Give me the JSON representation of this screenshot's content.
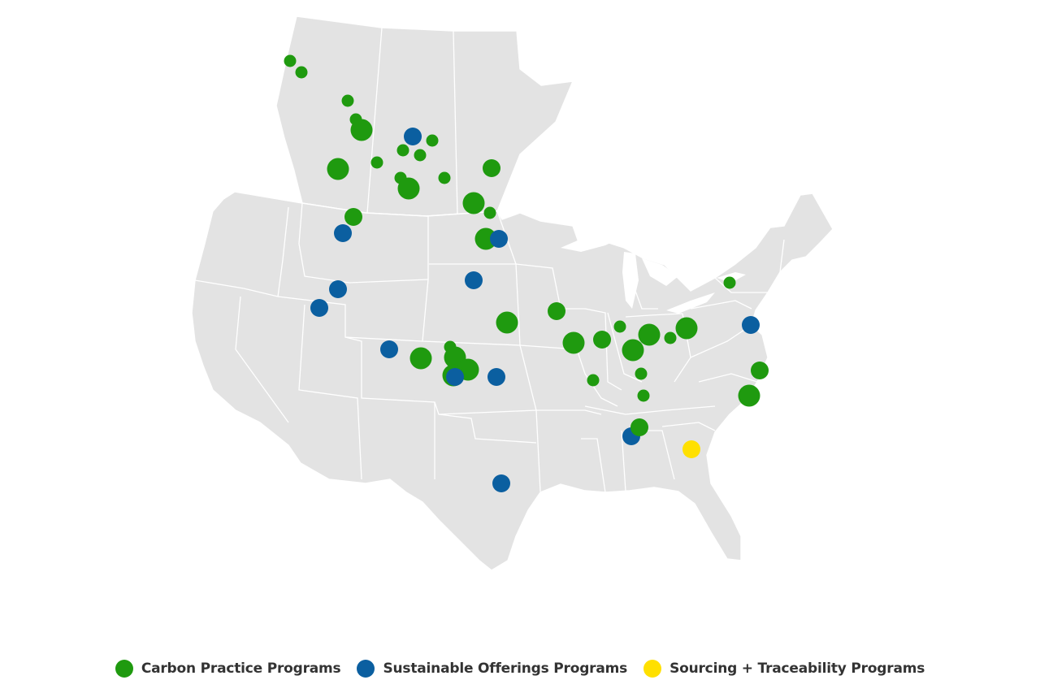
{
  "colors": {
    "land": "#e3e3e3",
    "border": "#ffffff",
    "text": "#333333"
  },
  "legend": [
    {
      "key": "carbon",
      "label": "Carbon Practice Programs",
      "color": "#1f9a0f",
      "icon": "green-circle-icon"
    },
    {
      "key": "sustainable",
      "label": "Sustainable Offerings Programs",
      "color": "#0b5fa0",
      "icon": "blue-circle-icon"
    },
    {
      "key": "sourcing",
      "label": "Sourcing + Traceability Programs",
      "color": "#ffe000",
      "icon": "yellow-circle-icon"
    }
  ],
  "program_markers": [
    {
      "program": "carbon",
      "size": "small"
    },
    {
      "program": "carbon",
      "size": "small"
    },
    {
      "program": "carbon",
      "size": "small"
    },
    {
      "program": "carbon",
      "size": "small"
    },
    {
      "program": "carbon",
      "size": "large"
    },
    {
      "program": "sustainable",
      "size": "medium"
    },
    {
      "program": "carbon",
      "size": "small"
    },
    {
      "program": "carbon",
      "size": "small"
    },
    {
      "program": "carbon",
      "size": "small"
    },
    {
      "program": "carbon",
      "size": "large"
    },
    {
      "program": "carbon",
      "size": "small"
    },
    {
      "program": "carbon",
      "size": "small"
    },
    {
      "program": "carbon",
      "size": "small"
    },
    {
      "program": "carbon",
      "size": "large"
    },
    {
      "program": "carbon",
      "size": "medium"
    },
    {
      "program": "carbon",
      "size": "large"
    },
    {
      "program": "carbon",
      "size": "small"
    },
    {
      "program": "carbon",
      "size": "medium"
    },
    {
      "program": "sustainable",
      "size": "medium"
    },
    {
      "program": "carbon",
      "size": "large"
    },
    {
      "program": "sustainable",
      "size": "medium"
    },
    {
      "program": "sustainable",
      "size": "medium"
    },
    {
      "program": "sustainable",
      "size": "medium"
    },
    {
      "program": "sustainable",
      "size": "medium"
    },
    {
      "program": "carbon",
      "size": "medium"
    },
    {
      "program": "carbon",
      "size": "large"
    },
    {
      "program": "sustainable",
      "size": "medium"
    },
    {
      "program": "carbon",
      "size": "large"
    },
    {
      "program": "carbon",
      "size": "small"
    },
    {
      "program": "carbon",
      "size": "large"
    },
    {
      "program": "carbon",
      "size": "large"
    },
    {
      "program": "carbon",
      "size": "large"
    },
    {
      "program": "sustainable",
      "size": "medium"
    },
    {
      "program": "sustainable",
      "size": "medium"
    },
    {
      "program": "carbon",
      "size": "large"
    },
    {
      "program": "carbon",
      "size": "medium"
    },
    {
      "program": "carbon",
      "size": "small"
    },
    {
      "program": "carbon",
      "size": "large"
    },
    {
      "program": "carbon",
      "size": "large"
    },
    {
      "program": "carbon",
      "size": "small"
    },
    {
      "program": "carbon",
      "size": "large"
    },
    {
      "program": "carbon",
      "size": "small"
    },
    {
      "program": "carbon",
      "size": "small"
    },
    {
      "program": "carbon",
      "size": "small"
    },
    {
      "program": "carbon",
      "size": "medium"
    },
    {
      "program": "carbon",
      "size": "small"
    },
    {
      "program": "sustainable",
      "size": "medium"
    },
    {
      "program": "sustainable",
      "size": "medium"
    },
    {
      "program": "carbon",
      "size": "medium"
    },
    {
      "program": "carbon",
      "size": "large"
    },
    {
      "program": "sourcing",
      "size": "medium"
    },
    {
      "program": "sustainable",
      "size": "medium"
    }
  ]
}
